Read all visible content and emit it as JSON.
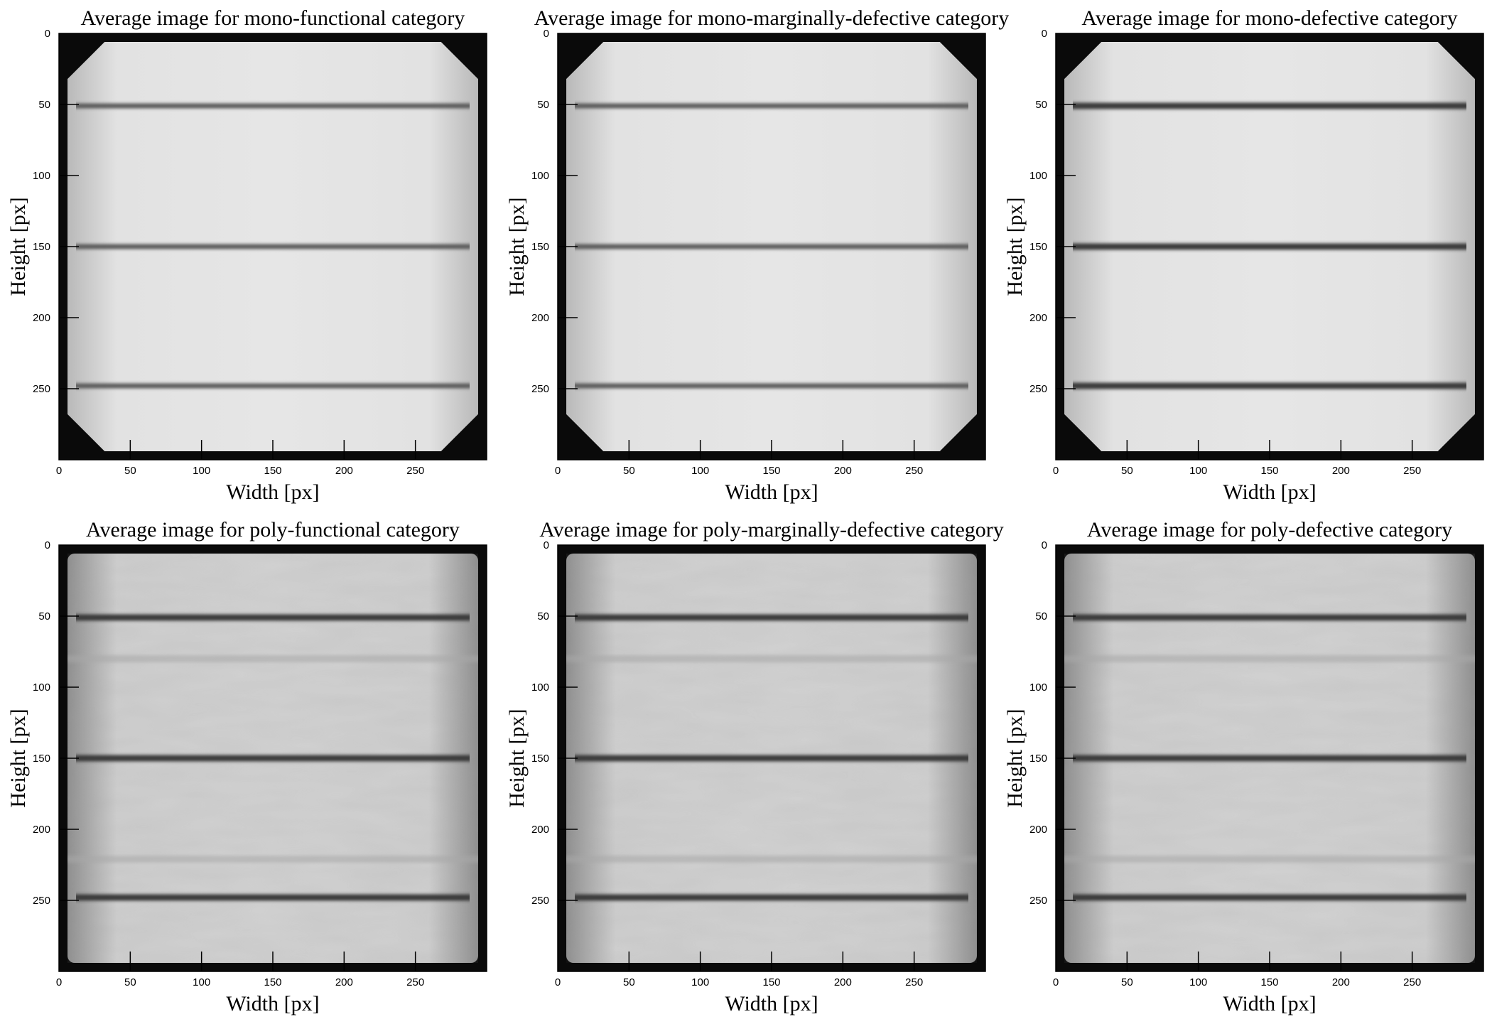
{
  "chart_data": [
    {
      "type": "heatmap",
      "title": "Average image for mono-functional category",
      "xlabel": "Width [px]",
      "ylabel": "Height [px]",
      "xlim": [
        0,
        300
      ],
      "ylim": [
        300,
        0
      ],
      "xticks": [
        0,
        50,
        100,
        150,
        200,
        250
      ],
      "yticks": [
        0,
        50,
        100,
        150,
        200,
        250
      ],
      "colormap": "gray",
      "cell_type": "mono",
      "busbar_rows": [
        51,
        150,
        248
      ],
      "busbar_intensity": "light",
      "rounded_corners": true
    },
    {
      "type": "heatmap",
      "title": "Average image for mono-marginally-defective category",
      "xlabel": "Width [px]",
      "ylabel": "Height [px]",
      "xlim": [
        0,
        300
      ],
      "ylim": [
        300,
        0
      ],
      "xticks": [
        0,
        50,
        100,
        150,
        200,
        250
      ],
      "yticks": [
        0,
        50,
        100,
        150,
        200,
        250
      ],
      "colormap": "gray",
      "cell_type": "mono",
      "busbar_rows": [
        51,
        150,
        248
      ],
      "busbar_intensity": "light",
      "rounded_corners": true
    },
    {
      "type": "heatmap",
      "title": "Average image for mono-defective category",
      "xlabel": "Width [px]",
      "ylabel": "Height [px]",
      "xlim": [
        0,
        300
      ],
      "ylim": [
        300,
        0
      ],
      "xticks": [
        0,
        50,
        100,
        150,
        200,
        250
      ],
      "yticks": [
        0,
        50,
        100,
        150,
        200,
        250
      ],
      "colormap": "gray",
      "cell_type": "mono",
      "busbar_rows": [
        51,
        150,
        248
      ],
      "busbar_intensity": "strong",
      "rounded_corners": true
    },
    {
      "type": "heatmap",
      "title": "Average image for poly-functional category",
      "xlabel": "Width [px]",
      "ylabel": "Height [px]",
      "xlim": [
        0,
        300
      ],
      "ylim": [
        300,
        0
      ],
      "xticks": [
        0,
        50,
        100,
        150,
        200,
        250
      ],
      "yticks": [
        0,
        50,
        100,
        150,
        200,
        250
      ],
      "colormap": "gray",
      "cell_type": "poly",
      "busbar_rows": [
        51,
        150,
        248
      ],
      "busbar_intensity": "strong",
      "rounded_corners": false
    },
    {
      "type": "heatmap",
      "title": "Average image for poly-marginally-defective category",
      "xlabel": "Width [px]",
      "ylabel": "Height [px]",
      "xlim": [
        0,
        300
      ],
      "ylim": [
        300,
        0
      ],
      "xticks": [
        0,
        50,
        100,
        150,
        200,
        250
      ],
      "yticks": [
        0,
        50,
        100,
        150,
        200,
        250
      ],
      "colormap": "gray",
      "cell_type": "poly",
      "busbar_rows": [
        51,
        150,
        248
      ],
      "busbar_intensity": "strong",
      "rounded_corners": false
    },
    {
      "type": "heatmap",
      "title": "Average image for poly-defective category",
      "xlabel": "Width [px]",
      "ylabel": "Height [px]",
      "xlim": [
        0,
        300
      ],
      "ylim": [
        300,
        0
      ],
      "xticks": [
        0,
        50,
        100,
        150,
        200,
        250
      ],
      "yticks": [
        0,
        50,
        100,
        150,
        200,
        250
      ],
      "colormap": "gray",
      "cell_type": "poly",
      "busbar_rows": [
        51,
        150,
        248
      ],
      "busbar_intensity": "strong",
      "rounded_corners": false
    }
  ]
}
